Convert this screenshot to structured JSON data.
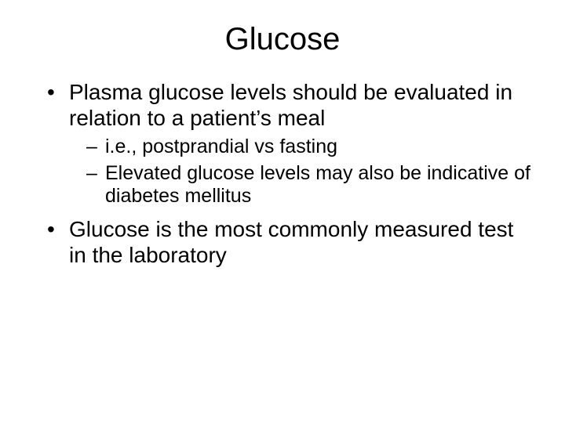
{
  "slide": {
    "title": "Glucose",
    "bullets": [
      {
        "text": "Plasma glucose levels should be evaluated in relation to a patient’s meal",
        "children": [
          {
            "text": "i.e., postprandial vs fasting"
          },
          {
            "text": "Elevated glucose levels may also be indicative of diabetes mellitus"
          }
        ]
      },
      {
        "text": "Glucose is the most commonly measured test in the laboratory",
        "children": []
      }
    ]
  },
  "style": {
    "background_color": "#ffffff",
    "text_color": "#000000",
    "title_fontsize": 40,
    "body_fontsize": 28,
    "sub_fontsize": 25,
    "font_family": "Arial"
  }
}
